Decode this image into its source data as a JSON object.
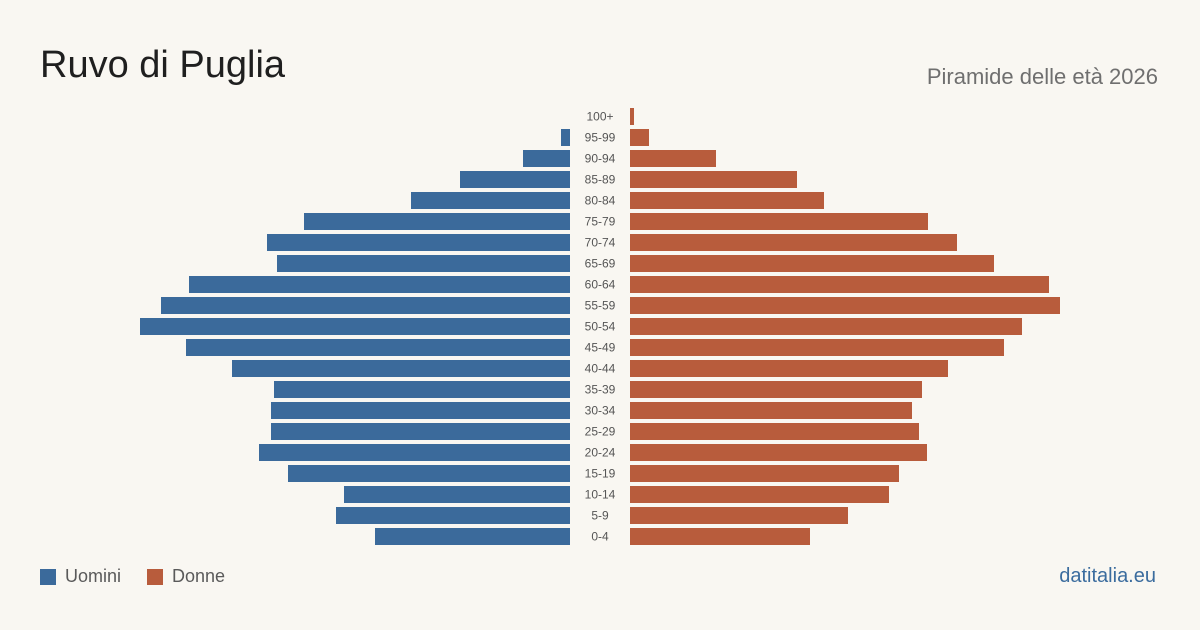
{
  "title": "Ruvo di Puglia",
  "subtitle": "Piramide delle età 2026",
  "source": "datitalia.eu",
  "colors": {
    "male": "#3b6a9b",
    "female": "#b85c3c"
  },
  "chart_data": {
    "type": "bar",
    "orientation": "horizontal-pyramid",
    "categories": [
      "100+",
      "95-99",
      "90-94",
      "85-89",
      "80-84",
      "75-79",
      "70-74",
      "65-69",
      "60-64",
      "55-59",
      "50-54",
      "45-49",
      "40-44",
      "35-39",
      "30-34",
      "25-29",
      "20-24",
      "15-19",
      "10-14",
      "5-9",
      "0-4"
    ],
    "series": [
      {
        "name": "Uomini",
        "values": [
          0,
          9,
          47,
          110,
          159,
          266,
          303,
          293,
          381,
          409,
          430,
          384,
          338,
          296,
          299,
          299,
          311,
          282,
          226,
          234,
          195
        ]
      },
      {
        "name": "Donne",
        "values": [
          4,
          19,
          86,
          167,
          194,
          298,
          327,
          364,
          419,
          430,
          392,
          374,
          318,
          292,
          282,
          289,
          297,
          269,
          259,
          218,
          180
        ]
      }
    ],
    "legend": "bottom-left",
    "grid": false
  }
}
